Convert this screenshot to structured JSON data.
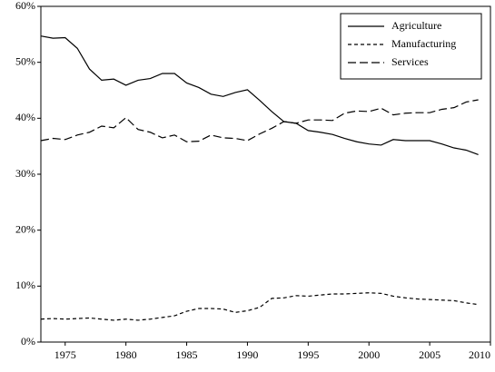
{
  "chart_data": {
    "type": "line",
    "x": [
      1973,
      1974,
      1975,
      1976,
      1977,
      1978,
      1979,
      1980,
      1981,
      1982,
      1983,
      1984,
      1985,
      1986,
      1987,
      1988,
      1989,
      1990,
      1991,
      1992,
      1993,
      1994,
      1995,
      1996,
      1997,
      1998,
      1999,
      2000,
      2001,
      2002,
      2003,
      2004,
      2005,
      2006,
      2007,
      2008,
      2009
    ],
    "series": [
      {
        "name": "Agriculture",
        "color": "#000000",
        "dash": "solid",
        "values": [
          54.7,
          54.3,
          54.4,
          52.5,
          48.8,
          46.8,
          47.0,
          45.9,
          46.8,
          47.1,
          48.0,
          48.0,
          46.3,
          45.5,
          44.3,
          43.9,
          44.6,
          45.1,
          43.2,
          41.2,
          39.4,
          39.1,
          37.8,
          37.5,
          37.1,
          36.4,
          35.8,
          35.4,
          35.2,
          36.2,
          36.0,
          36.0,
          36.0,
          35.4,
          34.7,
          34.3,
          33.5
        ]
      },
      {
        "name": "Manufacturing",
        "color": "#000000",
        "dash": "short",
        "values": [
          4.1,
          4.2,
          4.1,
          4.2,
          4.3,
          4.1,
          3.9,
          4.1,
          3.9,
          4.1,
          4.4,
          4.7,
          5.5,
          6.0,
          6.0,
          5.9,
          5.3,
          5.6,
          6.2,
          7.8,
          7.9,
          8.3,
          8.2,
          8.4,
          8.6,
          8.6,
          8.7,
          8.8,
          8.7,
          8.2,
          7.9,
          7.7,
          7.6,
          7.5,
          7.4,
          7.0,
          6.7
        ]
      },
      {
        "name": "Services",
        "color": "#000000",
        "dash": "long",
        "values": [
          36.0,
          36.4,
          36.2,
          37.0,
          37.5,
          38.6,
          38.3,
          40.1,
          38.0,
          37.5,
          36.5,
          37.0,
          35.8,
          35.9,
          37.0,
          36.5,
          36.4,
          36.0,
          37.2,
          38.2,
          39.4,
          39.1,
          39.7,
          39.7,
          39.6,
          40.9,
          41.3,
          41.2,
          41.8,
          40.6,
          40.9,
          41.0,
          41.0,
          41.6,
          41.9,
          42.9,
          43.3
        ]
      }
    ],
    "xlim": [
      1973,
      2010
    ],
    "xticks": [
      1975,
      1980,
      1985,
      1990,
      1995,
      2000,
      2005,
      2010
    ],
    "ylim": [
      0,
      60
    ],
    "yticks": [
      {
        "value": 0,
        "label": "0%"
      },
      {
        "value": 10,
        "label": "10%"
      },
      {
        "value": 20,
        "label": "20%"
      },
      {
        "value": 30,
        "label": "30%"
      },
      {
        "value": 40,
        "label": "40%"
      },
      {
        "value": 50,
        "label": "50%"
      },
      {
        "value": 60,
        "label": "60%"
      }
    ],
    "legend": "top-right",
    "grid": false
  }
}
